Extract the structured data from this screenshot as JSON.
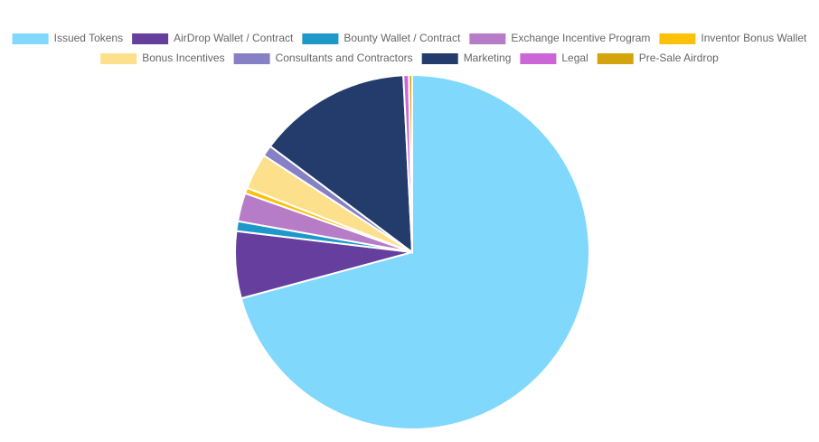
{
  "chart_data": {
    "type": "pie",
    "categories": [
      "Issued Tokens",
      "AirDrop Wallet / Contract",
      "Bounty Wallet / Contract",
      "Exchange Incentive Program",
      "Inventor Bonus Wallet",
      "Bonus Incentives",
      "Consultants and Contractors",
      "Marketing",
      "Legal",
      "Pre-Sale Airdrop"
    ],
    "values": [
      70.8,
      6.1,
      0.9,
      2.6,
      0.5,
      3.3,
      1.0,
      14.0,
      0.5,
      0.3
    ],
    "colors": [
      "#80d8fc",
      "#663e9e",
      "#1e98c9",
      "#b77cc7",
      "#fcc20b",
      "#fde08c",
      "#8680c5",
      "#233c6b",
      "#cc66d6",
      "#d4a40c"
    ]
  }
}
